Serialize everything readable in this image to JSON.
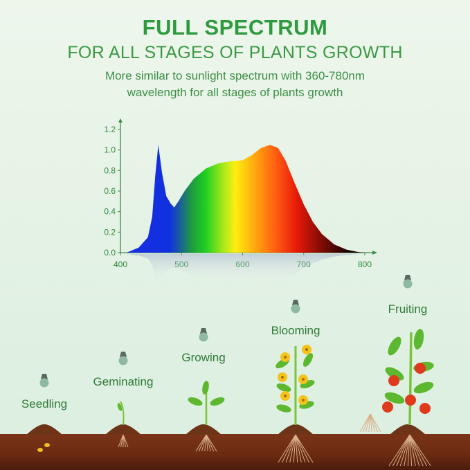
{
  "header": {
    "title": "FULL SPECTRUM",
    "subtitle": "FOR ALL STAGES OF PLANTS GROWTH",
    "description_line1": "More similar to sunlight spectrum with 360-780nm",
    "description_line2": "wavelength for all stages of plants growth"
  },
  "chart_data": {
    "type": "area",
    "title": "",
    "xlabel": "",
    "ylabel": "",
    "xlim": [
      400,
      800
    ],
    "ylim": [
      0,
      1.2
    ],
    "x_ticks": [
      "400",
      "500",
      "600",
      "700",
      "800"
    ],
    "y_ticks": [
      "0.0",
      "0.2",
      "0.4",
      "0.6",
      "0.8",
      "1.0",
      "1.2"
    ],
    "grid": false,
    "fill": "rainbow spectrum gradient",
    "x": [
      410,
      430,
      445,
      452,
      457,
      462,
      468,
      475,
      482,
      488,
      495,
      505,
      520,
      540,
      560,
      580,
      600,
      615,
      630,
      645,
      658,
      670,
      685,
      700,
      715,
      730,
      750,
      770,
      790,
      800
    ],
    "y": [
      0,
      0.05,
      0.15,
      0.35,
      0.75,
      1.05,
      0.78,
      0.55,
      0.48,
      0.44,
      0.5,
      0.6,
      0.72,
      0.82,
      0.87,
      0.89,
      0.9,
      0.95,
      1.02,
      1.05,
      1.02,
      0.9,
      0.68,
      0.47,
      0.3,
      0.18,
      0.08,
      0.03,
      0.005,
      0
    ]
  },
  "colors": {
    "accent": "#2e9a3e",
    "soil": "#6a2a12",
    "leaf": "#5cb82e",
    "fruit": "#e03a1c",
    "flower": "#f5c21a"
  },
  "stages": [
    {
      "label": "Seedling",
      "icon": "bulb-icon"
    },
    {
      "label": "Geminating",
      "icon": "bulb-icon"
    },
    {
      "label": "Growing",
      "icon": "bulb-icon"
    },
    {
      "label": "Blooming",
      "icon": "bulb-icon"
    },
    {
      "label": "Fruiting",
      "icon": "bulb-icon"
    }
  ]
}
